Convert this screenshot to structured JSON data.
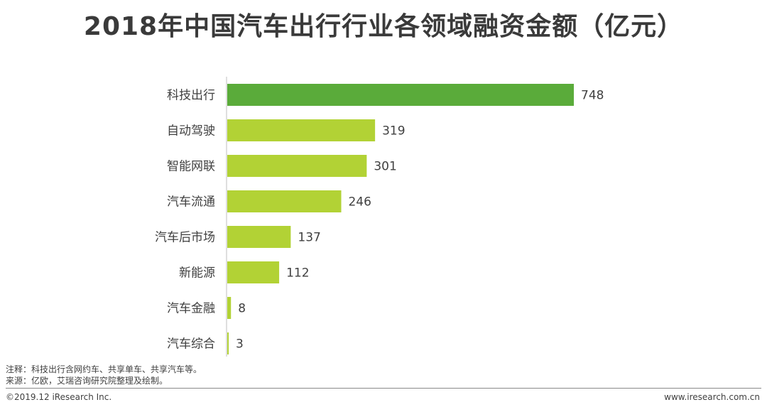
{
  "title": "2018年中国汽车出行行业各领域融资金额（亿元）",
  "chart_data": {
    "type": "bar",
    "orientation": "horizontal",
    "title": "2018年中国汽车出行行业各领域融资金额（亿元）",
    "categories": [
      "科技出行",
      "自动驾驶",
      "智能网联",
      "汽车流通",
      "汽车后市场",
      "新能源",
      "汽车金融",
      "汽车综合"
    ],
    "values": [
      748,
      319,
      301,
      246,
      137,
      112,
      8,
      3
    ],
    "value_labels": [
      "748",
      "319",
      "301",
      "246",
      "137",
      "112",
      "8",
      "3"
    ],
    "xlim": [
      0,
      748
    ],
    "grid": false,
    "highlight_color": "#5aab3a",
    "bar_color": "#b2d235"
  },
  "notes": {
    "line1": "注释：科技出行含网约车、共享单车、共享汽车等。",
    "line2": "来源：亿欧，艾瑞咨询研究院整理及绘制。"
  },
  "footer": {
    "copyright": "©2019.12 iResearch Inc.",
    "website": "www.iresearch.com.cn"
  }
}
